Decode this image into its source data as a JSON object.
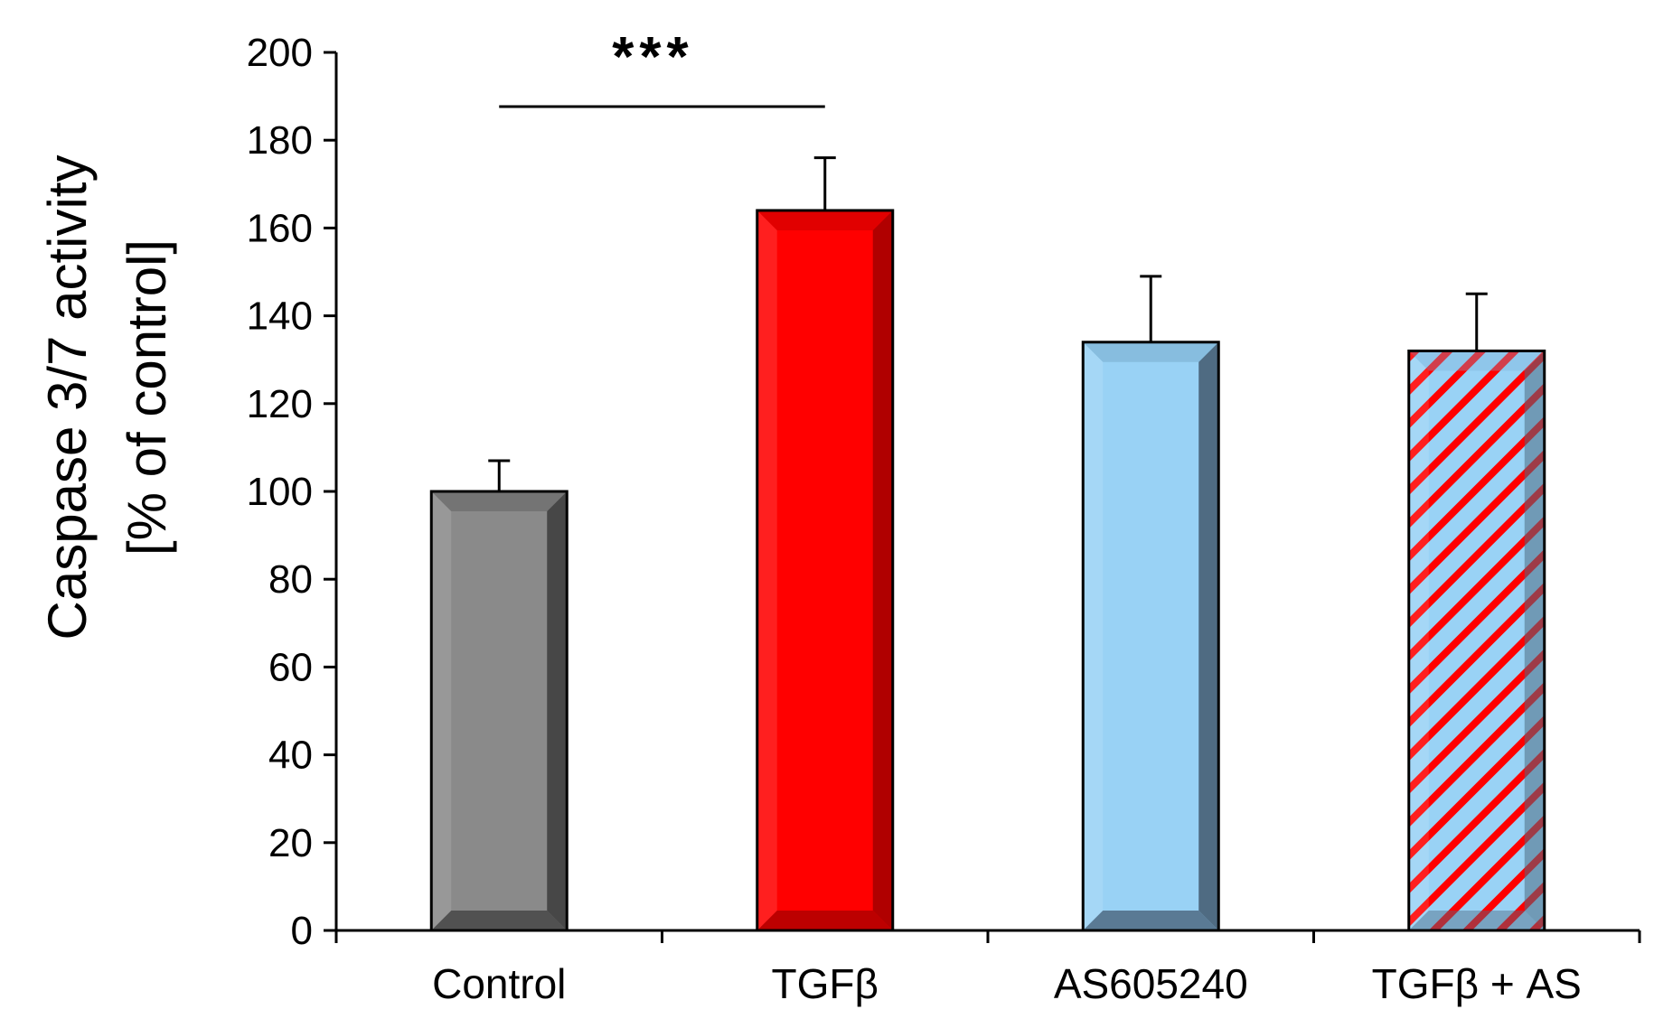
{
  "chart_data": {
    "type": "bar",
    "title": "",
    "xlabel": "",
    "ylabel_lines": [
      "Caspase 3/7 activity",
      "[% of control]"
    ],
    "ylim": [
      0,
      200
    ],
    "yticks": [
      0,
      20,
      40,
      60,
      80,
      100,
      120,
      140,
      160,
      180,
      200
    ],
    "categories": [
      "Control",
      "TGFβ",
      "AS605240",
      "TGFβ + AS"
    ],
    "values": [
      100,
      164,
      134,
      132
    ],
    "errors": [
      7,
      12,
      15,
      13
    ],
    "bars": [
      {
        "face": "#8a8a8a",
        "side": "#474747",
        "top": "#6b6b6b",
        "pattern": "solid"
      },
      {
        "face": "#ff0000",
        "side": "#b00000",
        "top": "#d40000",
        "pattern": "solid"
      },
      {
        "face": "#99d2f5",
        "side": "#4f6b82",
        "top": "#7fb3d6",
        "pattern": "solid"
      },
      {
        "face": "#99d2f5",
        "side": "#4f6b82",
        "top": "#7fb3d6",
        "pattern": "hatch",
        "hatch_color": "#ff0000"
      }
    ],
    "significance": [
      {
        "from": 0,
        "to": 1,
        "label": "***"
      }
    ]
  }
}
